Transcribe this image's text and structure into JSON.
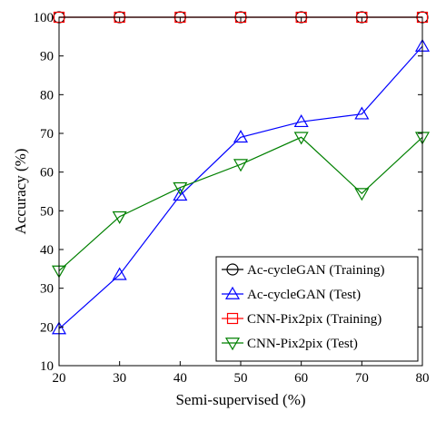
{
  "chart_data": {
    "type": "line",
    "title": "",
    "xlabel": "Semi-supervised (%)",
    "ylabel": "Accuracy (%)",
    "x": [
      20,
      30,
      40,
      50,
      60,
      70,
      80
    ],
    "xlim": [
      20,
      80
    ],
    "ylim": [
      10,
      100
    ],
    "xticks": [
      20,
      30,
      40,
      50,
      60,
      70,
      80
    ],
    "yticks": [
      10,
      20,
      30,
      40,
      50,
      60,
      70,
      80,
      90,
      100
    ],
    "grid": false,
    "legend_position": "bottom-right",
    "series": [
      {
        "name": "Ac-cycleGAN (Training)",
        "values": [
          100,
          100,
          100,
          100,
          100,
          100,
          100
        ],
        "color": "#000000",
        "marker": "circle"
      },
      {
        "name": "Ac-cycleGAN (Test)",
        "values": [
          19.5,
          33.5,
          54,
          69,
          73,
          75,
          92.5
        ],
        "color": "#0000ff",
        "marker": "triangle-up"
      },
      {
        "name": "CNN-Pix2pix (Training)",
        "values": [
          100,
          100,
          100,
          100,
          100,
          100,
          100
        ],
        "color": "#ff0000",
        "marker": "square"
      },
      {
        "name": "CNN-Pix2pix (Test)",
        "values": [
          34.5,
          48.5,
          56,
          62,
          69,
          54.5,
          69
        ],
        "color": "#008000",
        "marker": "triangle-down"
      }
    ]
  }
}
